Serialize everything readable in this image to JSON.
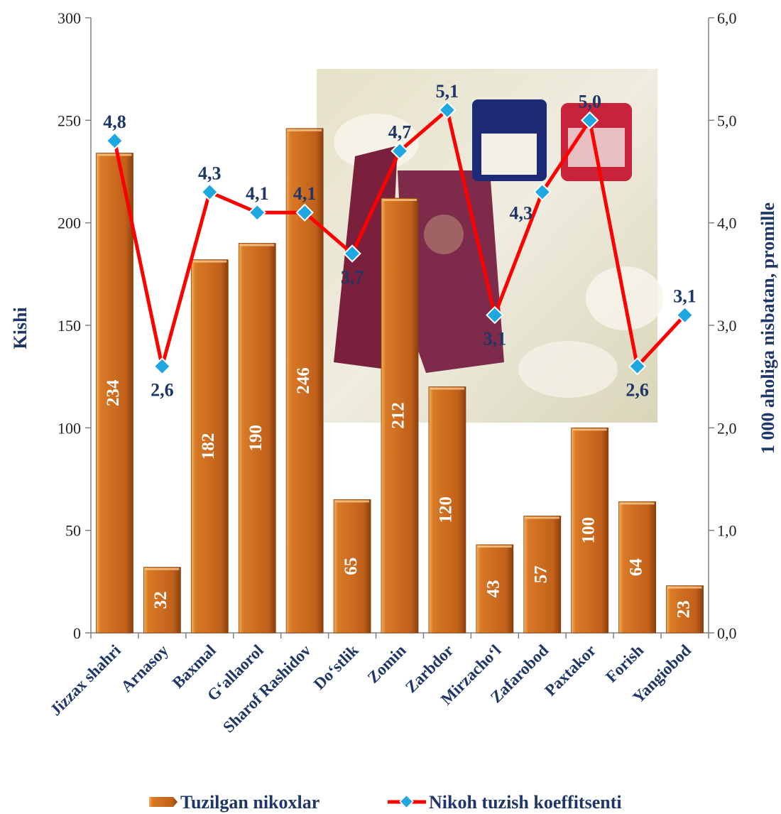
{
  "chart_data": {
    "type": "bar",
    "categories": [
      "Jizzax shahri",
      "Arnasoy",
      "Baxmal",
      "G‘allaorol",
      "Sharof Rashidov",
      "Do‘stlik",
      "Zomin",
      "Zarbdor",
      "Mirzacho‘l",
      "Zafarobod",
      "Paxtakor",
      "Forish",
      "Yangiobod"
    ],
    "series": [
      {
        "name": "Tuzilgan nikoxlar",
        "type": "bar",
        "axis": "left",
        "color": "#c8661c",
        "values": [
          234,
          32,
          182,
          190,
          246,
          65,
          212,
          120,
          43,
          57,
          100,
          64,
          23
        ],
        "labels": [
          "234",
          "32",
          "182",
          "190",
          "246",
          "65",
          "212",
          "120",
          "43",
          "57",
          "100",
          "64",
          "23"
        ]
      },
      {
        "name": "Nikoh tuzish koeffitsenti",
        "type": "line",
        "axis": "right",
        "color": "#ff0000",
        "marker_color": "#1ea7e0",
        "values": [
          4.8,
          2.6,
          4.3,
          4.1,
          4.1,
          3.7,
          4.7,
          5.1,
          3.1,
          4.3,
          5.0,
          2.6,
          3.1
        ],
        "labels": [
          "4,8",
          "2,6",
          "4,3",
          "4,1",
          "4,1",
          "3,7",
          "4,7",
          "5,1",
          "3,1",
          "4,3",
          "5,0",
          "2,6",
          "3,1"
        ]
      }
    ],
    "ylabel": "Kishi",
    "y2label": "1 000 aholiga nisbatan, promille",
    "ylim": [
      0,
      300
    ],
    "y2lim": [
      0,
      6
    ],
    "y_ticks": [
      "0",
      "50",
      "100",
      "150",
      "200",
      "250",
      "300"
    ],
    "y2_ticks": [
      "0,0",
      "1,0",
      "2,0",
      "3,0",
      "4,0",
      "5,0",
      "6,0"
    ],
    "grid": false,
    "legend_position": "bottom",
    "label_color": "#1f3766"
  }
}
